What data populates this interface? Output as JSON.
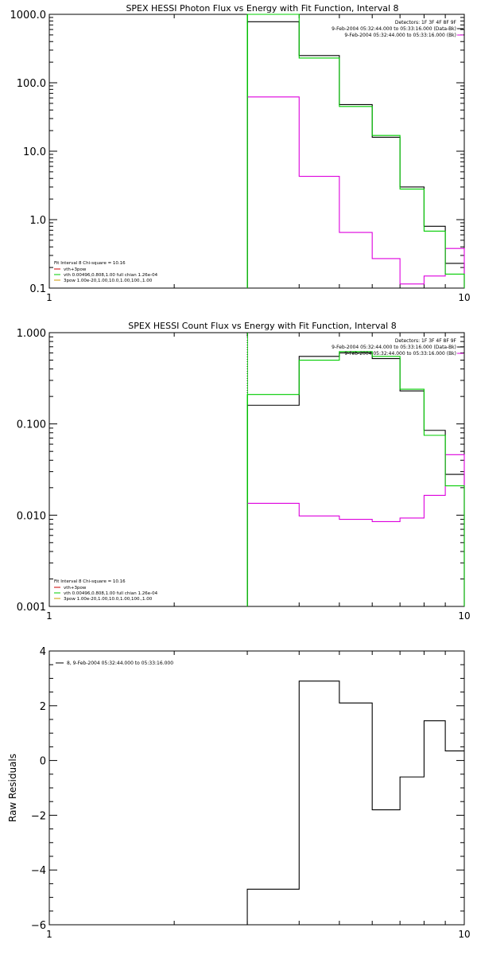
{
  "chart_data": [
    {
      "type": "line",
      "title": "SPEX HESSI Photon Flux vs Energy with Fit Function, Interval 8",
      "xscale": "log",
      "yscale": "log",
      "xlim": [
        1,
        10
      ],
      "ylim": [
        0.1,
        1000
      ],
      "x_ticks": [
        {
          "v": 1,
          "label": "1"
        },
        {
          "v": 10,
          "label": "10"
        }
      ],
      "y_ticks": [
        {
          "v": 0.1,
          "label": "0.1"
        },
        {
          "v": 1,
          "label": "1.0"
        },
        {
          "v": 10,
          "label": "10.0"
        },
        {
          "v": 100,
          "label": "100.0"
        },
        {
          "v": 1000,
          "label": "1000.0"
        }
      ],
      "vline": 3.0,
      "legend_top": [
        "Detectors: 1F 3F 4F 8F 9F",
        "9-Feb-2004 05:32:44.000 to 05:33:16.000 (Data-Bk)",
        "9-Feb-2004 05:32:44.000 to 05:33:16.000 (Bk)"
      ],
      "legend_bottom": [
        {
          "text": "Fit Interval 8    Chi-square = 10.16",
          "color": "#000000"
        },
        {
          "text": "vth+3pow",
          "color": "#cc0000"
        },
        {
          "text": "vth 0.00496,0.808,1.00  full chian 1.26e-04",
          "color": "#00cc00"
        },
        {
          "text": "3pow 1.00e-20,1.00,10.0,1.00,100.,1.00",
          "color": "#cc9900"
        }
      ],
      "series": [
        {
          "name": "Data-Bk",
          "color": "#000000",
          "edges": [
            3,
            4,
            5,
            6,
            7,
            8,
            9,
            10
          ],
          "values": [
            780,
            250,
            48,
            16,
            3,
            0.8,
            0.23
          ]
        },
        {
          "name": "Bk",
          "color": "#dd00dd",
          "edges": [
            3,
            4,
            5,
            6,
            7,
            8,
            9,
            10
          ],
          "values": [
            62,
            4.3,
            0.65,
            0.27,
            0.115,
            0.15,
            0.38
          ]
        },
        {
          "color": "#00cc00",
          "edges": [
            3,
            4,
            5,
            6,
            7,
            8,
            9,
            10
          ],
          "values": [
            1000,
            230,
            45,
            17,
            2.8,
            0.68,
            0.16
          ]
        }
      ]
    },
    {
      "type": "line",
      "title": "SPEX HESSI Count Flux vs Energy with Fit Function, Interval 8",
      "xscale": "log",
      "yscale": "log",
      "xlim": [
        1,
        10
      ],
      "ylim": [
        0.001,
        1
      ],
      "x_ticks": [
        {
          "v": 1,
          "label": "1"
        },
        {
          "v": 10,
          "label": "10"
        }
      ],
      "y_ticks": [
        {
          "v": 0.001,
          "label": "0.001"
        },
        {
          "v": 0.01,
          "label": "0.010"
        },
        {
          "v": 0.1,
          "label": "0.100"
        },
        {
          "v": 1,
          "label": "1.000"
        }
      ],
      "vline": 3.0,
      "legend_top": [
        "Detectors: 1F 3F 4F 8F 9F",
        "9-Feb-2004 05:32:44.000 to 05:33:16.000 (Data-Bk)",
        "9-Feb-2004 05:32:44.000 to 05:33:16.000 (Bk)"
      ],
      "legend_bottom": [
        {
          "text": "Fit Interval 8    Chi-square = 10.16",
          "color": "#000000"
        },
        {
          "text": "vth+3pow",
          "color": "#cc0000"
        },
        {
          "text": "vth 0.00496,0.808,1.00  full chian 1.26e-04",
          "color": "#00cc00"
        },
        {
          "text": "3pow 1.00e-20,1.00,10.0,1.00,100.,1.00",
          "color": "#cc9900"
        }
      ],
      "series": [
        {
          "name": "Data-Bk",
          "color": "#000000",
          "edges": [
            3,
            4,
            5,
            6,
            7,
            8,
            9,
            10
          ],
          "values": [
            0.16,
            0.55,
            0.6,
            0.52,
            0.23,
            0.085,
            0.028
          ]
        },
        {
          "name": "Bk",
          "color": "#dd00dd",
          "edges": [
            3,
            4,
            5,
            6,
            7,
            8,
            9,
            10
          ],
          "values": [
            0.0135,
            0.0098,
            0.009,
            0.0085,
            0.0093,
            0.0165,
            0.046
          ]
        },
        {
          "color": "#00cc00",
          "edges": [
            3,
            4,
            5,
            6,
            7,
            8,
            9,
            10
          ],
          "values": [
            0.21,
            0.5,
            0.62,
            0.55,
            0.24,
            0.075,
            0.021
          ]
        }
      ]
    },
    {
      "type": "line",
      "title": "",
      "xscale": "log",
      "yscale": "linear",
      "xlim": [
        1,
        10
      ],
      "ylim": [
        -6,
        4
      ],
      "ylabel": "Raw Residuals",
      "x_ticks": [
        {
          "v": 1,
          "label": "1"
        },
        {
          "v": 10,
          "label": "10"
        }
      ],
      "y_ticks": [
        {
          "v": -6,
          "label": "−6"
        },
        {
          "v": -4,
          "label": "−4"
        },
        {
          "v": -2,
          "label": "−2"
        },
        {
          "v": 0,
          "label": "0"
        },
        {
          "v": 2,
          "label": "2"
        },
        {
          "v": 4,
          "label": "4"
        }
      ],
      "legend_top_left": "8,  9-Feb-2004 05:32:44.000 to 05:33:16.000",
      "series": [
        {
          "color": "#000000",
          "edges": [
            3,
            4,
            5,
            6,
            7,
            8,
            9,
            10
          ],
          "values": [
            -4.7,
            2.9,
            2.1,
            -1.8,
            -0.6,
            1.45,
            0.35
          ]
        }
      ]
    }
  ]
}
